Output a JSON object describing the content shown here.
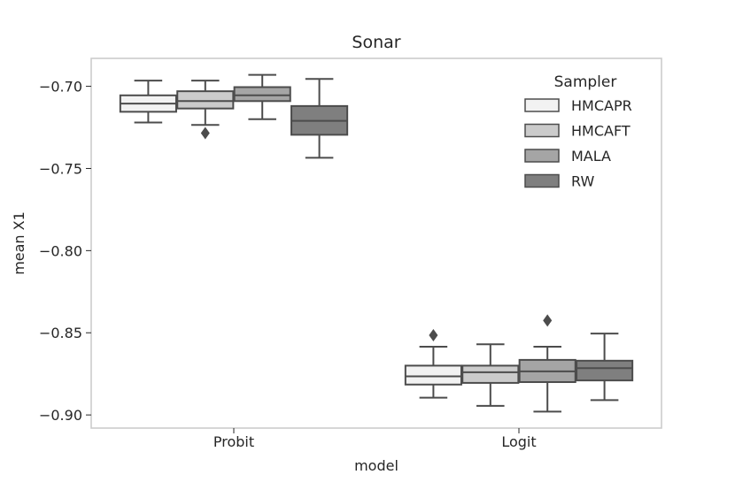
{
  "chart_data": {
    "type": "boxplot",
    "title": "Sonar",
    "xlabel": "model",
    "ylabel": "mean X1",
    "ylim": [
      -0.908,
      -0.683
    ],
    "yticks": [
      -0.7,
      -0.75,
      -0.8,
      -0.85,
      -0.9
    ],
    "ytick_labels": [
      "−0.70",
      "−0.75",
      "−0.80",
      "−0.85",
      "−0.90"
    ],
    "categories": [
      "Probit",
      "Logit"
    ],
    "legend": {
      "title": "Sampler",
      "position": "top-right"
    },
    "series": [
      {
        "name": "HMCAPR",
        "color": "#f2f2f2",
        "boxes": [
          {
            "whislo": -0.722,
            "q1": -0.7155,
            "med": -0.7105,
            "q3": -0.7055,
            "whishi": -0.6965,
            "fliers": []
          },
          {
            "whislo": -0.8895,
            "q1": -0.8815,
            "med": -0.8765,
            "q3": -0.87,
            "whishi": -0.8585,
            "fliers": [
              -0.8515
            ]
          }
        ]
      },
      {
        "name": "HMCAFT",
        "color": "#cbcbcb",
        "boxes": [
          {
            "whislo": -0.7235,
            "q1": -0.7135,
            "med": -0.709,
            "q3": -0.703,
            "whishi": -0.6965,
            "fliers": [
              -0.7285
            ]
          },
          {
            "whislo": -0.8945,
            "q1": -0.8805,
            "med": -0.874,
            "q3": -0.87,
            "whishi": -0.857,
            "fliers": []
          }
        ]
      },
      {
        "name": "MALA",
        "color": "#a5a5a5",
        "boxes": [
          {
            "whislo": -0.72,
            "q1": -0.709,
            "med": -0.7055,
            "q3": -0.7005,
            "whishi": -0.693,
            "fliers": []
          },
          {
            "whislo": -0.898,
            "q1": -0.88,
            "med": -0.8735,
            "q3": -0.8665,
            "whishi": -0.8585,
            "fliers": [
              -0.8425
            ]
          }
        ]
      },
      {
        "name": "RW",
        "color": "#7f7f7f",
        "boxes": [
          {
            "whislo": -0.7435,
            "q1": -0.7295,
            "med": -0.721,
            "q3": -0.712,
            "whishi": -0.6955,
            "fliers": []
          },
          {
            "whislo": -0.891,
            "q1": -0.879,
            "med": -0.8715,
            "q3": -0.867,
            "whishi": -0.8505,
            "fliers": []
          }
        ]
      }
    ]
  }
}
